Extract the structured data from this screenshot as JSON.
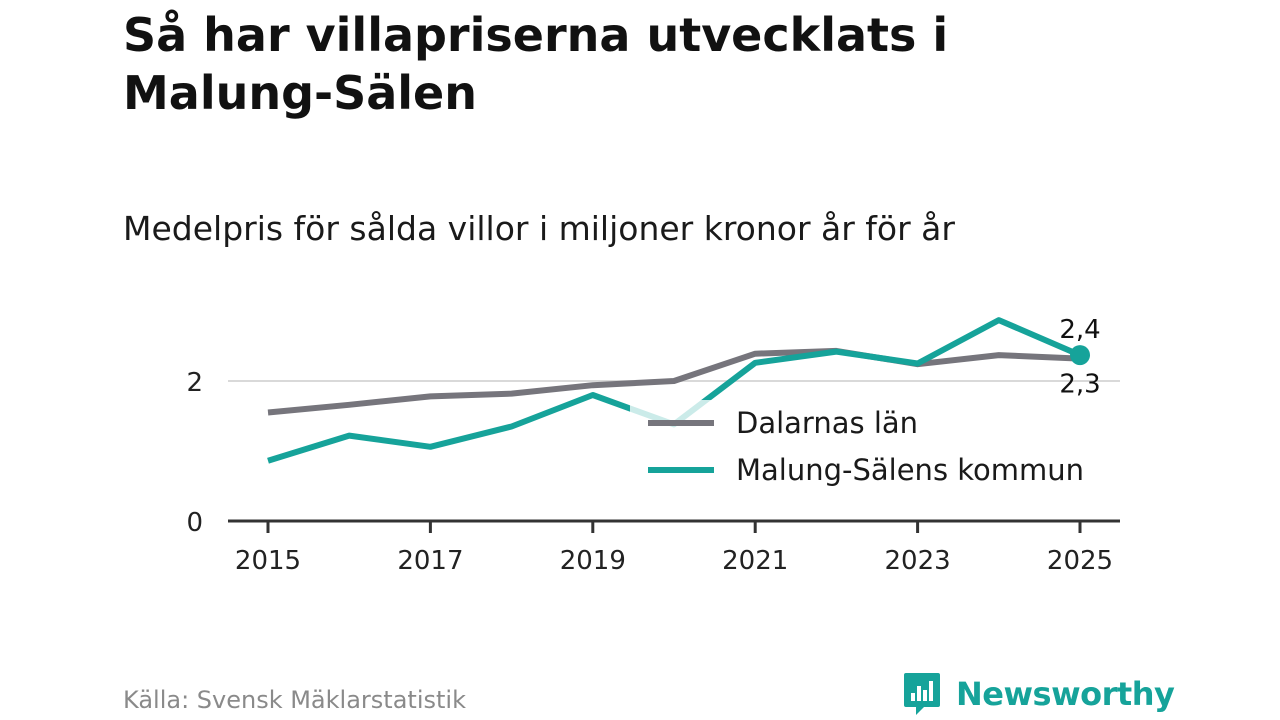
{
  "title": "Så har villapriserna utvecklats i Malung-Sälen",
  "subtitle": "Medelpris för sålda villor i miljoner kronor år för år",
  "source": "Källa: Svensk Mäklarstatistik",
  "brand": "Newsworthy",
  "colors": {
    "dalarna": "#76757c",
    "malung": "#16a39a",
    "grid": "#d9d9d9",
    "axis": "#333333",
    "brand": "#16a39a"
  },
  "chart_data": {
    "type": "line",
    "title": "Så har villapriserna utvecklats i Malung-Sälen",
    "subtitle": "Medelpris för sålda villor i miljoner kronor år för år",
    "xlabel": "",
    "ylabel": "",
    "x": [
      2015,
      2016,
      2017,
      2018,
      2019,
      2020,
      2021,
      2022,
      2023,
      2024,
      2025
    ],
    "xticks": [
      "2015",
      "2017",
      "2019",
      "2021",
      "2023",
      "2025"
    ],
    "yticks": [
      "0",
      "2"
    ],
    "xlim": [
      2015,
      2025
    ],
    "ylim": [
      0,
      3.0
    ],
    "series": [
      {
        "name": "Dalarnas län",
        "key": "dalarna",
        "values": [
          1.55,
          1.66,
          1.78,
          1.82,
          1.94,
          2.0,
          2.39,
          2.43,
          2.24,
          2.37,
          2.32
        ]
      },
      {
        "name": "Malung-Sälens kommun",
        "key": "malung",
        "values": [
          0.86,
          1.22,
          1.06,
          1.35,
          1.8,
          1.38,
          2.26,
          2.42,
          2.25,
          2.87,
          2.37
        ]
      }
    ],
    "end_labels": {
      "malung": "2,4",
      "dalarna": "2,3"
    },
    "legend_position": "inside-right",
    "grid": true
  }
}
